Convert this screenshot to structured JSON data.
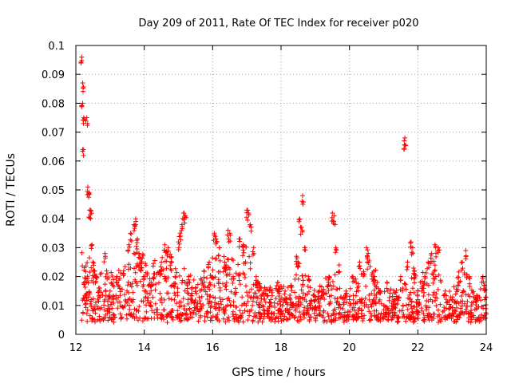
{
  "chart_data": {
    "type": "scatter",
    "title": "Day 209 of 2011, Rate Of TEC Index for receiver p020",
    "xlabel": "GPS time / hours",
    "ylabel": "ROTI / TECUs",
    "xlim": [
      12,
      24
    ],
    "ylim": [
      0,
      0.1
    ],
    "x_ticks": [
      12,
      14,
      16,
      18,
      20,
      22,
      24
    ],
    "x_tick_labels": [
      "12",
      "14",
      "16",
      "18",
      "20",
      "22",
      "24"
    ],
    "y_ticks": [
      0,
      0.01,
      0.02,
      0.03,
      0.04,
      0.05,
      0.06,
      0.07,
      0.08,
      0.09,
      0.1
    ],
    "y_tick_labels": [
      "0",
      "0.01",
      "0.02",
      "0.03",
      "0.04",
      "0.05",
      "0.06",
      "0.07",
      "0.08",
      "0.09",
      "0.1"
    ],
    "grid": true,
    "marker": "plus",
    "color": "#ff0000",
    "series": [
      {
        "name": "ROTI",
        "points": [
          [
            12.17,
            0.096
          ],
          [
            12.2,
            0.087
          ],
          [
            12.2,
            0.08
          ],
          [
            12.23,
            0.075
          ],
          [
            12.32,
            0.075
          ],
          [
            12.2,
            0.064
          ],
          [
            12.35,
            0.051
          ],
          [
            12.38,
            0.049
          ],
          [
            12.4,
            0.043
          ],
          [
            12.43,
            0.043
          ],
          [
            12.47,
            0.031
          ],
          [
            12.5,
            0.025
          ],
          [
            12.55,
            0.022
          ],
          [
            12.25,
            0.018
          ],
          [
            12.3,
            0.014
          ],
          [
            12.45,
            0.012
          ],
          [
            12.6,
            0.02
          ],
          [
            12.7,
            0.016
          ],
          [
            12.85,
            0.028
          ],
          [
            12.9,
            0.022
          ],
          [
            13.0,
            0.015
          ],
          [
            13.2,
            0.02
          ],
          [
            13.4,
            0.022
          ],
          [
            13.55,
            0.031
          ],
          [
            13.6,
            0.035
          ],
          [
            13.7,
            0.038
          ],
          [
            13.75,
            0.04
          ],
          [
            13.8,
            0.033
          ],
          [
            13.85,
            0.028
          ],
          [
            13.9,
            0.025
          ],
          [
            14.0,
            0.02
          ],
          [
            14.2,
            0.018
          ],
          [
            14.3,
            0.021
          ],
          [
            14.5,
            0.025
          ],
          [
            14.6,
            0.031
          ],
          [
            14.7,
            0.03
          ],
          [
            14.8,
            0.025
          ],
          [
            14.9,
            0.02
          ],
          [
            15.0,
            0.032
          ],
          [
            15.05,
            0.035
          ],
          [
            15.1,
            0.038
          ],
          [
            15.15,
            0.042
          ],
          [
            15.2,
            0.041
          ],
          [
            15.3,
            0.02
          ],
          [
            15.5,
            0.016
          ],
          [
            15.7,
            0.018
          ],
          [
            15.9,
            0.025
          ],
          [
            16.05,
            0.035
          ],
          [
            16.1,
            0.033
          ],
          [
            16.2,
            0.03
          ],
          [
            16.35,
            0.025
          ],
          [
            16.45,
            0.036
          ],
          [
            16.5,
            0.035
          ],
          [
            16.6,
            0.02
          ],
          [
            16.8,
            0.033
          ],
          [
            16.9,
            0.031
          ],
          [
            17.0,
            0.043
          ],
          [
            17.05,
            0.042
          ],
          [
            17.1,
            0.038
          ],
          [
            17.2,
            0.03
          ],
          [
            17.3,
            0.018
          ],
          [
            17.5,
            0.015
          ],
          [
            17.7,
            0.012
          ],
          [
            17.9,
            0.018
          ],
          [
            18.1,
            0.014
          ],
          [
            18.3,
            0.017
          ],
          [
            18.45,
            0.027
          ],
          [
            18.5,
            0.025
          ],
          [
            18.55,
            0.04
          ],
          [
            18.6,
            0.037
          ],
          [
            18.63,
            0.048
          ],
          [
            18.7,
            0.03
          ],
          [
            18.8,
            0.02
          ],
          [
            19.0,
            0.012
          ],
          [
            19.2,
            0.015
          ],
          [
            19.4,
            0.02
          ],
          [
            19.5,
            0.042
          ],
          [
            19.55,
            0.041
          ],
          [
            19.6,
            0.03
          ],
          [
            19.7,
            0.024
          ],
          [
            19.9,
            0.015
          ],
          [
            20.1,
            0.02
          ],
          [
            20.3,
            0.025
          ],
          [
            20.5,
            0.03
          ],
          [
            20.55,
            0.028
          ],
          [
            20.7,
            0.02
          ],
          [
            20.9,
            0.015
          ],
          [
            21.1,
            0.018
          ],
          [
            21.3,
            0.012
          ],
          [
            21.5,
            0.02
          ],
          [
            21.6,
            0.067
          ],
          [
            21.62,
            0.068
          ],
          [
            21.7,
            0.025
          ],
          [
            21.8,
            0.032
          ],
          [
            21.85,
            0.03
          ],
          [
            21.9,
            0.022
          ],
          [
            22.0,
            0.015
          ],
          [
            22.2,
            0.02
          ],
          [
            22.3,
            0.025
          ],
          [
            22.4,
            0.028
          ],
          [
            22.5,
            0.031
          ],
          [
            22.6,
            0.03
          ],
          [
            22.8,
            0.015
          ],
          [
            23.0,
            0.012
          ],
          [
            23.2,
            0.018
          ],
          [
            23.3,
            0.025
          ],
          [
            23.4,
            0.029
          ],
          [
            23.5,
            0.02
          ],
          [
            23.7,
            0.012
          ],
          [
            23.9,
            0.02
          ],
          [
            23.95,
            0.017
          ],
          [
            24.0,
            0.007
          ]
        ],
        "dense_band": {
          "x_range": [
            12.17,
            24.0
          ],
          "y_floor": 0.003,
          "y_baseline": 0.011,
          "sample_count": 1500,
          "activity_envelope": [
            [
              12.2,
              0.026
            ],
            [
              12.6,
              0.022
            ],
            [
              13.0,
              0.018
            ],
            [
              13.3,
              0.024
            ],
            [
              13.8,
              0.033
            ],
            [
              14.1,
              0.02
            ],
            [
              14.6,
              0.028
            ],
            [
              15.0,
              0.024
            ],
            [
              15.5,
              0.016
            ],
            [
              16.0,
              0.024
            ],
            [
              16.4,
              0.026
            ],
            [
              16.9,
              0.031
            ],
            [
              17.3,
              0.017
            ],
            [
              17.8,
              0.014
            ],
            [
              18.4,
              0.018
            ],
            [
              18.6,
              0.026
            ],
            [
              19.0,
              0.012
            ],
            [
              19.5,
              0.022
            ],
            [
              19.8,
              0.012
            ],
            [
              20.2,
              0.018
            ],
            [
              20.6,
              0.024
            ],
            [
              21.0,
              0.015
            ],
            [
              21.5,
              0.014
            ],
            [
              21.9,
              0.022
            ],
            [
              22.2,
              0.018
            ],
            [
              22.5,
              0.026
            ],
            [
              22.9,
              0.014
            ],
            [
              23.3,
              0.022
            ],
            [
              23.7,
              0.013
            ],
            [
              24.0,
              0.016
            ]
          ]
        }
      }
    ]
  }
}
